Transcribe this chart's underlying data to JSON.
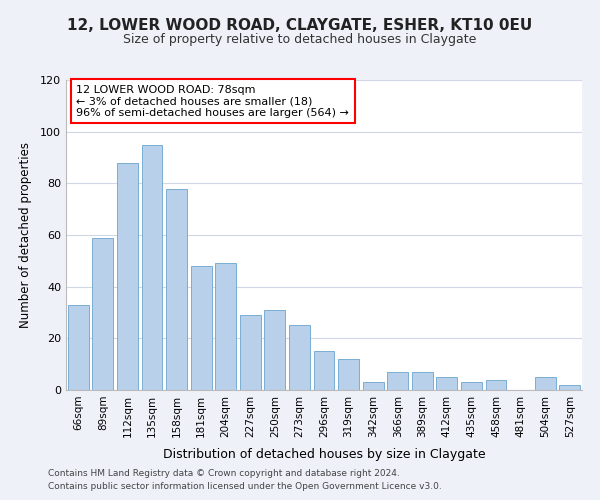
{
  "title": "12, LOWER WOOD ROAD, CLAYGATE, ESHER, KT10 0EU",
  "subtitle": "Size of property relative to detached houses in Claygate",
  "xlabel": "Distribution of detached houses by size in Claygate",
  "ylabel": "Number of detached properties",
  "bar_labels": [
    "66sqm",
    "89sqm",
    "112sqm",
    "135sqm",
    "158sqm",
    "181sqm",
    "204sqm",
    "227sqm",
    "250sqm",
    "273sqm",
    "296sqm",
    "319sqm",
    "342sqm",
    "366sqm",
    "389sqm",
    "412sqm",
    "435sqm",
    "458sqm",
    "481sqm",
    "504sqm",
    "527sqm"
  ],
  "bar_values": [
    33,
    59,
    88,
    95,
    78,
    48,
    49,
    29,
    31,
    25,
    15,
    12,
    3,
    7,
    7,
    5,
    3,
    4,
    0,
    5,
    2
  ],
  "bar_color": "#b8d0ea",
  "bar_edge_color": "#7aadd4",
  "ylim": [
    0,
    120
  ],
  "yticks": [
    0,
    20,
    40,
    60,
    80,
    100,
    120
  ],
  "annotation_title": "12 LOWER WOOD ROAD: 78sqm",
  "annotation_line1": "← 3% of detached houses are smaller (18)",
  "annotation_line2": "96% of semi-detached houses are larger (564) →",
  "footer_line1": "Contains HM Land Registry data © Crown copyright and database right 2024.",
  "footer_line2": "Contains public sector information licensed under the Open Government Licence v3.0.",
  "background_color": "#eef1f8",
  "plot_background_color": "#ffffff",
  "grid_color": "#d0d8e8"
}
